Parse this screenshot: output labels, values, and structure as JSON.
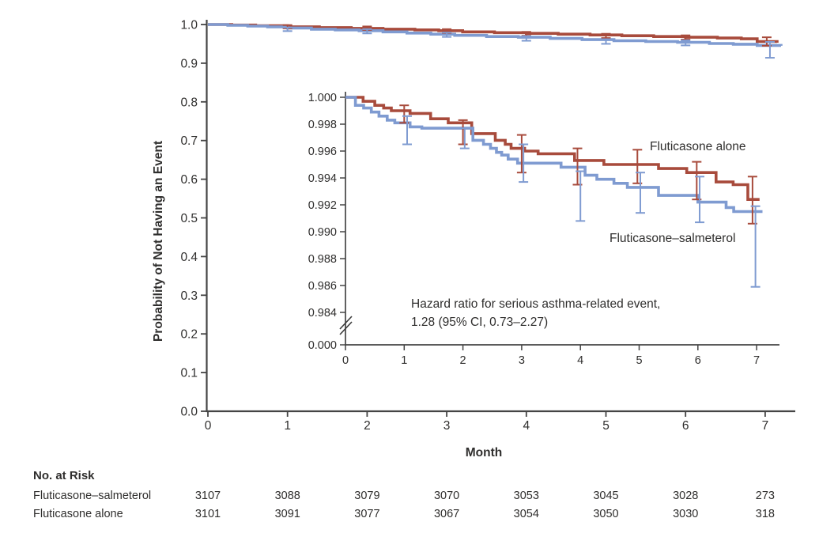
{
  "figure": {
    "background": "#ffffff",
    "colors": {
      "fluticasone_alone": "#a84b3c",
      "fluticasone_salmeterol": "#7f9bd1",
      "axis": "#454545",
      "text": "#2f2e2d"
    }
  },
  "chart_data": {
    "type": "line",
    "subtype": "kaplan-meier-step",
    "title": "",
    "xlabel": "Month",
    "ylabel": "Probability of Not Having an Event",
    "main_axis": {
      "xlim": [
        0,
        7.4
      ],
      "ylim": [
        0.0,
        1.0
      ],
      "xticks": [
        0,
        1,
        2,
        3,
        4,
        5,
        6,
        7
      ],
      "yticks": [
        0.0,
        0.1,
        0.2,
        0.3,
        0.4,
        0.5,
        0.6,
        0.7,
        0.8,
        0.9,
        1.0
      ],
      "grid": false
    },
    "legend": [
      {
        "label": "Fluticasone alone",
        "color": "#a84b3c"
      },
      {
        "label": "Fluticasone–salmeterol",
        "color": "#7f9bd1"
      }
    ],
    "series": [
      {
        "name": "Fluticasone alone",
        "color": "#a84b3c",
        "steps": [
          [
            0,
            1.0
          ],
          [
            0.3,
            0.9985
          ],
          [
            0.6,
            0.997
          ],
          [
            1.0,
            0.994
          ],
          [
            1.4,
            0.992
          ],
          [
            1.8,
            0.99
          ],
          [
            2.2,
            0.988
          ],
          [
            2.6,
            0.986
          ],
          [
            2.9,
            0.984
          ],
          [
            3.2,
            0.981
          ],
          [
            3.6,
            0.979
          ],
          [
            4.0,
            0.977
          ],
          [
            4.4,
            0.975
          ],
          [
            4.8,
            0.973
          ],
          [
            5.2,
            0.971
          ],
          [
            5.6,
            0.969
          ],
          [
            6.0,
            0.967
          ],
          [
            6.4,
            0.965
          ],
          [
            6.7,
            0.963
          ],
          [
            6.9,
            0.956
          ],
          [
            7.15,
            0.953
          ]
        ],
        "error_bars": [
          [
            1,
            0.99,
            0.9985
          ],
          [
            2,
            0.986,
            0.995
          ],
          [
            3,
            0.978,
            0.988
          ],
          [
            4,
            0.971,
            0.981
          ],
          [
            5,
            0.965,
            0.976
          ],
          [
            6,
            0.961,
            0.972
          ],
          [
            7.02,
            0.945,
            0.967
          ]
        ]
      },
      {
        "name": "Fluticasone–salmeterol",
        "color": "#7f9bd1",
        "steps": [
          [
            0,
            1.0
          ],
          [
            0.25,
            0.998
          ],
          [
            0.5,
            0.996
          ],
          [
            0.75,
            0.994
          ],
          [
            1.0,
            0.991
          ],
          [
            1.3,
            0.988
          ],
          [
            1.6,
            0.986
          ],
          [
            1.9,
            0.984
          ],
          [
            2.2,
            0.981
          ],
          [
            2.5,
            0.978
          ],
          [
            2.8,
            0.975
          ],
          [
            3.1,
            0.972
          ],
          [
            3.5,
            0.969
          ],
          [
            3.9,
            0.967
          ],
          [
            4.3,
            0.964
          ],
          [
            4.7,
            0.961
          ],
          [
            5.1,
            0.958
          ],
          [
            5.5,
            0.956
          ],
          [
            5.9,
            0.954
          ],
          [
            6.3,
            0.951
          ],
          [
            6.6,
            0.949
          ],
          [
            6.9,
            0.946
          ],
          [
            7.2,
            0.945
          ]
        ],
        "error_bars": [
          [
            1,
            0.983,
            0.992
          ],
          [
            2,
            0.977,
            0.988
          ],
          [
            3,
            0.968,
            0.979
          ],
          [
            4,
            0.958,
            0.97
          ],
          [
            5,
            0.95,
            0.962
          ],
          [
            6,
            0.946,
            0.959
          ],
          [
            7.06,
            0.914,
            0.955
          ]
        ]
      }
    ],
    "inset": {
      "axis": {
        "xlim": [
          0,
          7.4
        ],
        "ylim_shown": [
          0.984,
          1.0
        ],
        "xticks": [
          0,
          1,
          2,
          3,
          4,
          5,
          6,
          7
        ],
        "ytick_labels": [
          "1.000",
          "0.998",
          "0.996",
          "0.994",
          "0.992",
          "0.990",
          "0.988",
          "0.986",
          "0.984"
        ],
        "broken_axis_tick_label": "0.000",
        "axis_break": true
      },
      "series": [
        {
          "name": "Fluticasone alone",
          "color": "#a84b3c",
          "steps": [
            [
              0,
              1.0
            ],
            [
              0.3,
              0.9997
            ],
            [
              0.5,
              0.9994
            ],
            [
              0.65,
              0.9992
            ],
            [
              0.78,
              0.999
            ],
            [
              1.1,
              0.9988
            ],
            [
              1.45,
              0.9984
            ],
            [
              1.75,
              0.9981
            ],
            [
              2.15,
              0.9973
            ],
            [
              2.55,
              0.9968
            ],
            [
              2.72,
              0.9965
            ],
            [
              2.82,
              0.9962
            ],
            [
              3.05,
              0.996
            ],
            [
              3.28,
              0.9958
            ],
            [
              3.9,
              0.9953
            ],
            [
              4.4,
              0.995
            ],
            [
              5.33,
              0.9947
            ],
            [
              5.81,
              0.9944
            ],
            [
              6.31,
              0.9937
            ],
            [
              6.6,
              0.9935
            ],
            [
              6.85,
              0.9924
            ],
            [
              7.05,
              0.9924
            ]
          ],
          "error_bars": [
            [
              1,
              0.9981,
              0.9994
            ],
            [
              2,
              0.9965,
              0.9983
            ],
            [
              3,
              0.9944,
              0.9972
            ],
            [
              3.95,
              0.9935,
              0.9962
            ],
            [
              4.97,
              0.9936,
              0.9961
            ],
            [
              5.98,
              0.9924,
              0.9952
            ],
            [
              6.93,
              0.9906,
              0.9941
            ]
          ]
        },
        {
          "name": "Fluticasone–salmeterol",
          "color": "#7f9bd1",
          "steps": [
            [
              0,
              1.0
            ],
            [
              0.17,
              0.9994
            ],
            [
              0.31,
              0.9992
            ],
            [
              0.44,
              0.9989
            ],
            [
              0.57,
              0.9986
            ],
            [
              0.71,
              0.9983
            ],
            [
              0.84,
              0.9981
            ],
            [
              1.1,
              0.9978
            ],
            [
              1.3,
              0.9977
            ],
            [
              2.17,
              0.9968
            ],
            [
              2.35,
              0.9965
            ],
            [
              2.47,
              0.9962
            ],
            [
              2.57,
              0.9959
            ],
            [
              2.66,
              0.9957
            ],
            [
              2.77,
              0.9954
            ],
            [
              2.93,
              0.9951
            ],
            [
              3.67,
              0.9948
            ],
            [
              4.08,
              0.9942
            ],
            [
              4.28,
              0.9939
            ],
            [
              4.57,
              0.9936
            ],
            [
              4.8,
              0.9933
            ],
            [
              5.33,
              0.9927
            ],
            [
              6.0,
              0.9922
            ],
            [
              6.48,
              0.9918
            ],
            [
              6.61,
              0.9915
            ],
            [
              7.1,
              0.9915
            ]
          ],
          "error_bars": [
            [
              1.05,
              0.9965,
              0.9986
            ],
            [
              2.03,
              0.9962,
              0.9977
            ],
            [
              3.03,
              0.9937,
              0.9965
            ],
            [
              4.0,
              0.9908,
              0.9945
            ],
            [
              5.02,
              0.9914,
              0.9944
            ],
            [
              6.03,
              0.9907,
              0.9941
            ],
            [
              6.98,
              0.9859,
              0.9919
            ]
          ]
        }
      ]
    },
    "annotation": {
      "line1": "Hazard ratio for serious asthma-related event,",
      "line2": "1.28 (95% CI, 0.73–2.27)"
    }
  },
  "risk_table": {
    "header": "No. at Risk",
    "months": [
      0,
      1,
      2,
      3,
      4,
      5,
      6,
      7
    ],
    "rows": [
      {
        "label": "Fluticasone–salmeterol",
        "values": [
          "3107",
          "3088",
          "3079",
          "3070",
          "3053",
          "3045",
          "3028",
          "273"
        ]
      },
      {
        "label": "Fluticasone alone",
        "values": [
          "3101",
          "3091",
          "3077",
          "3067",
          "3054",
          "3050",
          "3030",
          "318"
        ]
      }
    ]
  }
}
